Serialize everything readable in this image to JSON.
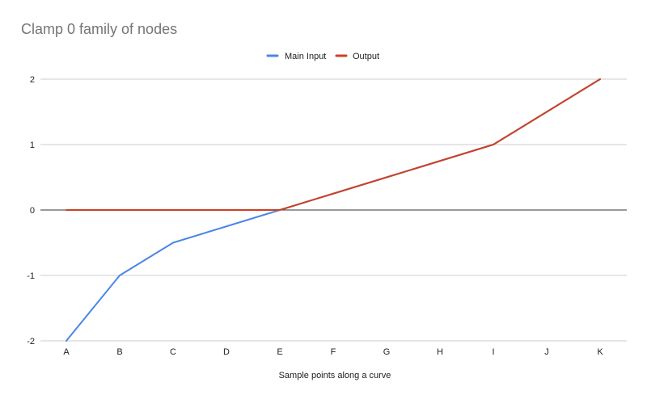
{
  "chart_data": {
    "type": "line",
    "title": "Clamp 0 family of nodes",
    "xlabel": "Sample points along a curve",
    "ylabel": "",
    "categories": [
      "A",
      "B",
      "C",
      "D",
      "E",
      "F",
      "G",
      "H",
      "I",
      "J",
      "K"
    ],
    "ylim": [
      -2,
      2
    ],
    "yticks": [
      2,
      1,
      0,
      -1,
      -2
    ],
    "grid": true,
    "legend_position": "top",
    "series": [
      {
        "name": "Main Input",
        "color": "#4a86e8",
        "values": [
          -2,
          -1,
          -0.5,
          -0.25,
          0,
          0.25,
          0.5,
          0.75,
          1,
          1.5,
          2
        ]
      },
      {
        "name": "Output",
        "color": "#cc4125",
        "values": [
          0,
          0,
          0,
          0,
          0,
          0.25,
          0.5,
          0.75,
          1,
          1.5,
          2
        ]
      }
    ]
  }
}
